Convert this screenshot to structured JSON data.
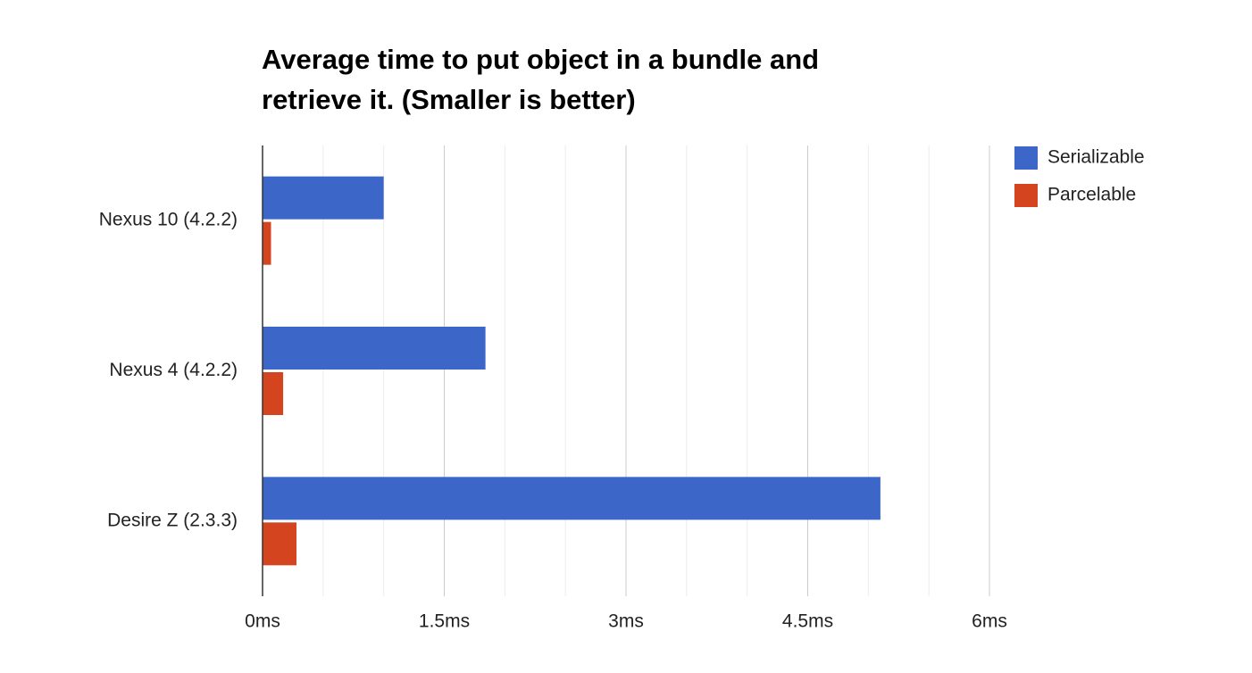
{
  "chart_data": {
    "type": "hbar",
    "title": "Average time to put object in a bundle and retrieve it. (Smaller is better)",
    "categories": [
      "Nexus 10 (4.2.2)",
      "Nexus 4 (4.2.2)",
      "Desire Z (2.3.3)"
    ],
    "series": [
      {
        "name": "Serializable",
        "color": "#3c67c8",
        "values": [
          1.0,
          1.84,
          5.1
        ]
      },
      {
        "name": "Parcelable",
        "color": "#d4441f",
        "values": [
          0.07,
          0.17,
          0.28
        ]
      }
    ],
    "xlim": [
      0,
      6
    ],
    "xticks": [
      {
        "value": 0,
        "label": "0ms"
      },
      {
        "value": 1.5,
        "label": "1.5ms"
      },
      {
        "value": 3,
        "label": "3ms"
      },
      {
        "value": 4.5,
        "label": "4.5ms"
      },
      {
        "value": 6,
        "label": "6ms"
      }
    ],
    "grid": true,
    "minor_grid": true,
    "legend": "right"
  }
}
